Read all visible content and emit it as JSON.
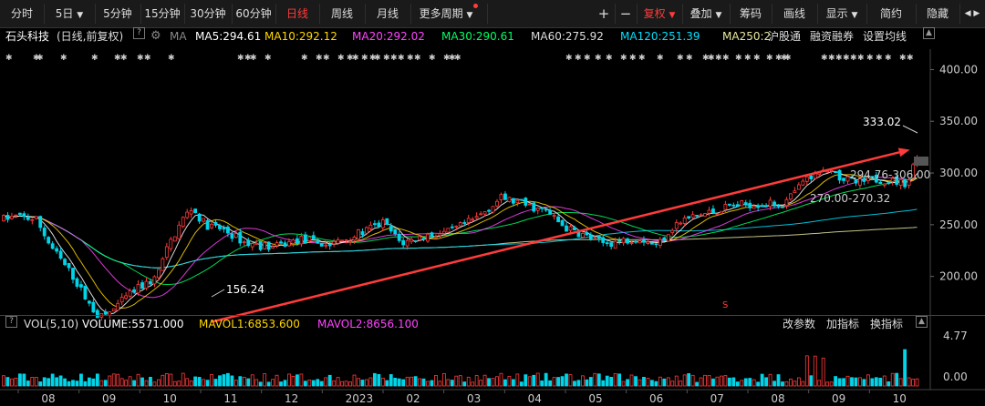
{
  "toolbar": {
    "periods": [
      "分时",
      "5日",
      "5分钟",
      "15分钟",
      "30分钟",
      "60分钟",
      "日线",
      "周线",
      "月线",
      "更多周期"
    ],
    "active_period": "日线",
    "plus": "+",
    "minus": "−",
    "fuquan": "复权",
    "overlay": "叠加",
    "chips": "筹码",
    "draw": "画线",
    "display": "显示",
    "simple": "简约",
    "hide": "隐藏",
    "nav_arrows": "◀ ▶"
  },
  "ma_bar": {
    "stock": "石头科技",
    "mode": "(日线,前复权)",
    "help": "?",
    "ma_label": "MA",
    "ma5": "MA5:294.61",
    "ma10": "MA10:292.12",
    "ma20": "MA20:292.02",
    "ma30": "MA30:290.61",
    "ma60": "MA60:275.92",
    "ma120": "MA120:251.39",
    "ma250": "MA250:2",
    "hgt": "沪股通",
    "margin": "融资融券",
    "set_ma": "设置均线"
  },
  "volume_bar": {
    "label": "VOL(5,10)",
    "volume": "VOLUME:5571.000",
    "mavol1": "MAVOL1:6853.600",
    "mavol2": "MAVOL2:8656.100",
    "change_params": "改参数",
    "add_indicator": "加指标",
    "swap_indicator": "换指标"
  },
  "colors": {
    "up": "#ff3b3b",
    "down": "#00d4e8",
    "ma5": "#ffffff",
    "ma10": "#ffd700",
    "ma20": "#ff44ff",
    "ma30": "#00ff66",
    "ma120": "#00e0ff",
    "ma250": "#e8e8a0"
  },
  "chart_data": {
    "type": "candlestick",
    "price_axis": [
      "400.00",
      "350.00",
      "300.00",
      "250.00",
      "200.00"
    ],
    "price_ylim": [
      168,
      418
    ],
    "volume_axis": [
      "4.77",
      "0.00"
    ],
    "months": [
      "08",
      "09",
      "10",
      "11",
      "12",
      "2023",
      "02",
      "03",
      "04",
      "05",
      "06",
      "07",
      "08",
      "09",
      "10"
    ],
    "annotations": {
      "high": "333.02",
      "low": "156.24",
      "range1": "270.00-270.32",
      "range2": "294.76-306.00"
    },
    "trend_line": {
      "from_price": 156,
      "to_price": 320
    }
  }
}
